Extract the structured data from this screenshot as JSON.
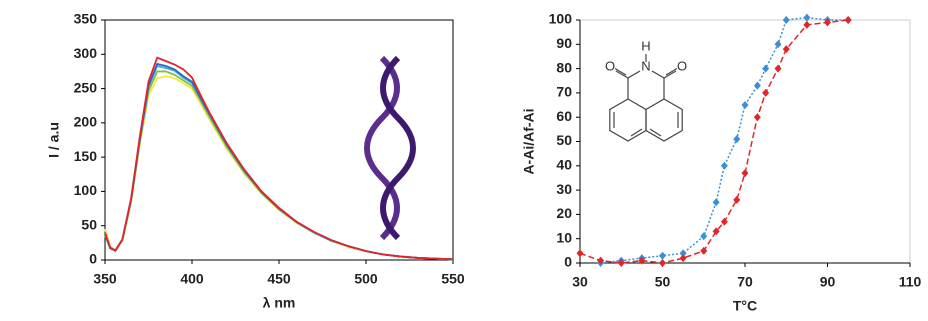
{
  "chart_data": [
    {
      "type": "line",
      "ylabel": "I / a.u",
      "xlabel": "λ nm",
      "xlim": [
        350,
        550
      ],
      "xticks": [
        350,
        400,
        450,
        500,
        550
      ],
      "ylim": [
        0,
        350
      ],
      "yticks": [
        0,
        50,
        100,
        150,
        200,
        250,
        300,
        350
      ],
      "x": [
        350,
        353,
        356,
        360,
        365,
        370,
        375,
        380,
        385,
        390,
        395,
        400,
        405,
        410,
        420,
        430,
        440,
        450,
        460,
        470,
        480,
        490,
        500,
        510,
        520,
        530,
        540,
        550
      ],
      "series": [
        {
          "color": "#f5e642",
          "values": [
            45,
            20,
            14,
            28,
            84,
            168,
            240,
            265,
            268,
            265,
            258,
            250,
            228,
            205,
            162,
            126,
            96,
            73,
            54,
            40,
            28,
            19,
            13,
            8,
            5,
            3,
            2,
            1
          ]
        },
        {
          "color": "#7cc242",
          "values": [
            36,
            17,
            13,
            29,
            86,
            172,
            246,
            275,
            275,
            270,
            262,
            254,
            232,
            209,
            165,
            128,
            98,
            74,
            55,
            40,
            28,
            20,
            13,
            8,
            5,
            3,
            2,
            1
          ]
        },
        {
          "color": "#3ab0d8",
          "values": [
            37,
            17,
            14,
            30,
            88,
            175,
            252,
            283,
            280,
            276,
            266,
            258,
            235,
            212,
            168,
            130,
            99,
            75,
            55,
            40,
            28,
            20,
            13,
            8,
            5,
            3,
            2,
            1
          ]
        },
        {
          "color": "#3a62c4",
          "values": [
            38,
            17,
            14,
            30,
            88,
            176,
            254,
            286,
            283,
            278,
            268,
            260,
            236,
            213,
            168,
            131,
            99,
            75,
            56,
            41,
            29,
            20,
            13,
            8,
            5,
            3,
            2,
            1
          ]
        },
        {
          "color": "#e0262b",
          "values": [
            40,
            18,
            14,
            30,
            90,
            180,
            260,
            295,
            290,
            285,
            278,
            266,
            240,
            215,
            170,
            132,
            100,
            76,
            56,
            41,
            29,
            20,
            13,
            8,
            5,
            3,
            2,
            1
          ]
        }
      ]
    },
    {
      "type": "scatter",
      "ylabel": "A-Ai/Af-Ai",
      "xlabel": "T°C",
      "xlim": [
        30,
        110
      ],
      "xticks": [
        30,
        50,
        70,
        90,
        110
      ],
      "ylim": [
        0,
        100
      ],
      "yticks": [
        0,
        10,
        20,
        30,
        40,
        50,
        60,
        70,
        80,
        90,
        100
      ],
      "annotations": [
        "O",
        "H",
        "N",
        "O"
      ],
      "series": [
        {
          "color": "#3a8fd8",
          "x": [
            35,
            40,
            45,
            50,
            55,
            60,
            63,
            65,
            68,
            70,
            73,
            75,
            78,
            80,
            85,
            90,
            95
          ],
          "values": [
            0,
            1,
            2,
            3,
            4,
            11,
            25,
            40,
            51,
            65,
            73,
            80,
            90,
            100,
            101,
            100,
            100
          ]
        },
        {
          "color": "#e0262b",
          "x": [
            30,
            35,
            40,
            45,
            50,
            55,
            60,
            63,
            65,
            68,
            70,
            73,
            75,
            78,
            80,
            85,
            90,
            95
          ],
          "values": [
            4,
            1,
            0,
            1,
            0,
            2,
            5,
            13,
            17,
            26,
            37,
            60,
            70,
            80,
            88,
            98,
            99,
            100
          ]
        }
      ]
    }
  ]
}
